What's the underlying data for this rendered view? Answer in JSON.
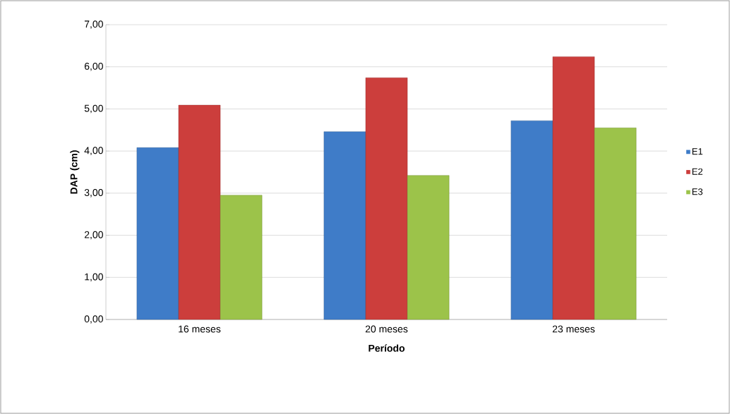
{
  "chart_data": {
    "type": "bar",
    "xlabel": "Período",
    "ylabel": "DAP (cm)",
    "categories": [
      "16 meses",
      "20 meses",
      "23 meses"
    ],
    "series": [
      {
        "name": "E1",
        "color": "#3f7cc8",
        "values": [
          4.08,
          4.46,
          4.72
        ]
      },
      {
        "name": "E2",
        "color": "#cc3e3c",
        "values": [
          5.09,
          5.74,
          6.24
        ]
      },
      {
        "name": "E3",
        "color": "#9cc34a",
        "values": [
          2.95,
          3.42,
          4.55
        ]
      }
    ],
    "ylim": [
      0,
      7
    ],
    "yticks": [
      {
        "value": 0,
        "label": "0,00"
      },
      {
        "value": 1,
        "label": "1,00"
      },
      {
        "value": 2,
        "label": "2,00"
      },
      {
        "value": 3,
        "label": "3,00"
      },
      {
        "value": 4,
        "label": "4,00"
      },
      {
        "value": 5,
        "label": "5,00"
      },
      {
        "value": 6,
        "label": "6,00"
      },
      {
        "value": 7,
        "label": "7,00"
      }
    ],
    "grid": "y",
    "legend": "right"
  }
}
